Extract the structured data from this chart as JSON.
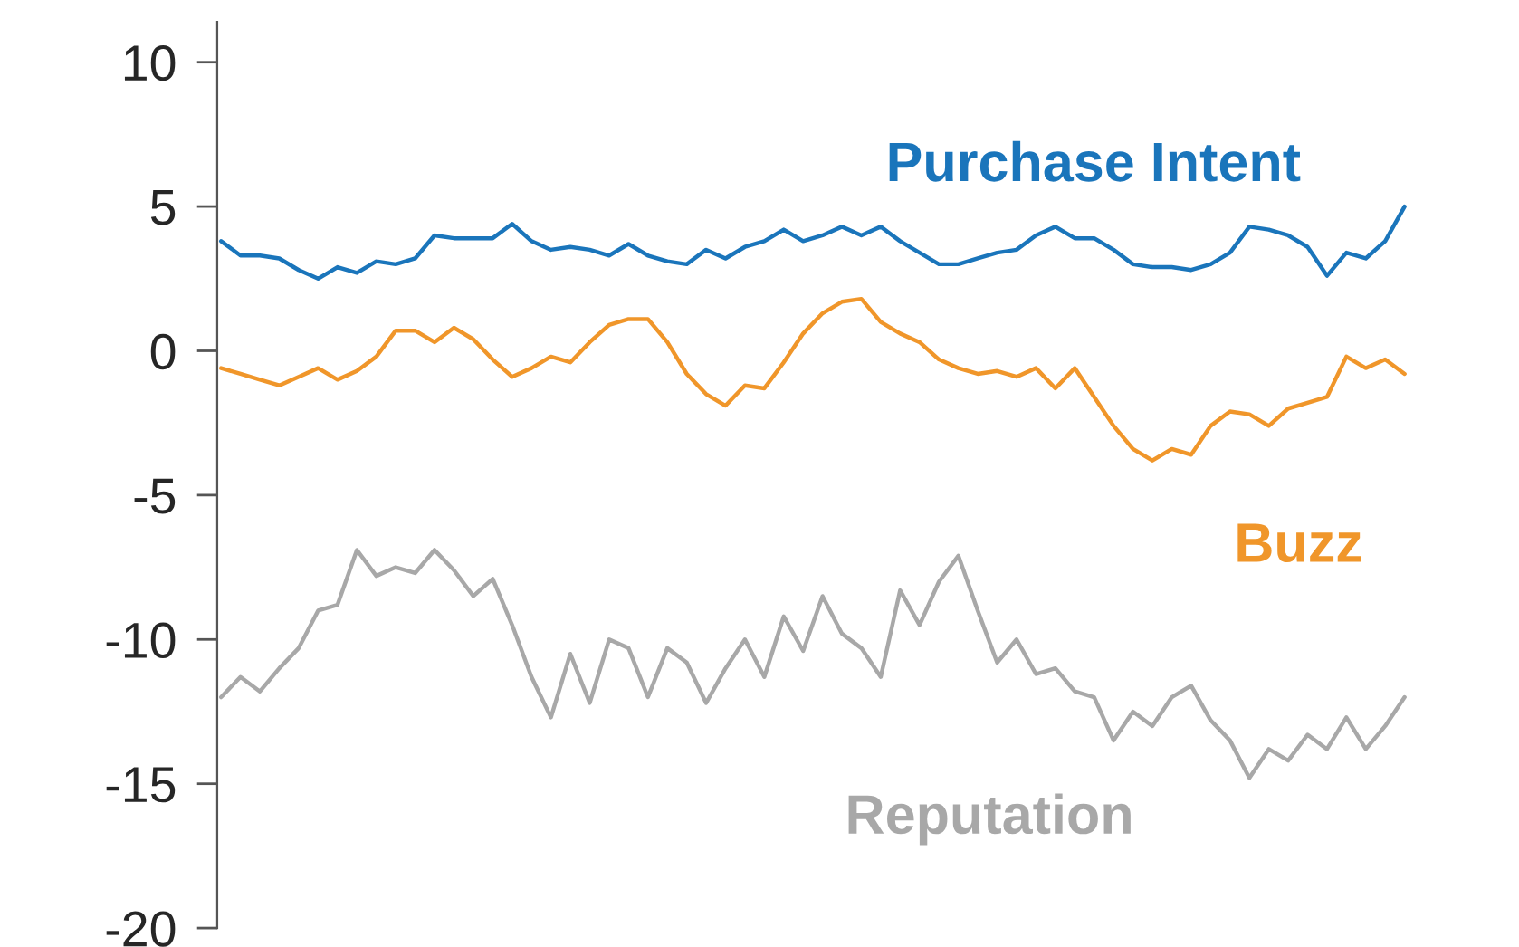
{
  "chart_data": {
    "type": "line",
    "categories": [
      null,
      null,
      null,
      null,
      null,
      null,
      null,
      null,
      null,
      null,
      null,
      null,
      null,
      null,
      null,
      null,
      null,
      null,
      null,
      null,
      null,
      null,
      null,
      null,
      null,
      null,
      null,
      null,
      null,
      null,
      null,
      null,
      null,
      null,
      null,
      null,
      null,
      null,
      null,
      null,
      null,
      null,
      null,
      null,
      null,
      null,
      null,
      null,
      null,
      null,
      null,
      null,
      null,
      null,
      null,
      null,
      null,
      null,
      null,
      null,
      null,
      null
    ],
    "series": [
      {
        "name": "Purchase Intent",
        "color": "#1a75bb",
        "values": [
          3.8,
          3.3,
          3.3,
          3.2,
          2.8,
          2.5,
          2.9,
          2.7,
          3.1,
          3.0,
          3.2,
          4.0,
          3.9,
          3.9,
          3.9,
          4.4,
          3.8,
          3.5,
          3.6,
          3.5,
          3.3,
          3.7,
          3.3,
          3.1,
          3.0,
          3.5,
          3.2,
          3.6,
          3.8,
          4.2,
          3.8,
          4.0,
          4.3,
          4.0,
          4.3,
          3.8,
          3.4,
          3.0,
          3.0,
          3.2,
          3.4,
          3.5,
          4.0,
          4.3,
          3.9,
          3.9,
          3.5,
          3.0,
          2.9,
          2.9,
          2.8,
          3.0,
          3.4,
          4.3,
          4.2,
          4.0,
          3.6,
          2.6,
          3.4,
          3.2,
          3.8,
          5.0
        ]
      },
      {
        "name": "Buzz",
        "color": "#f0962a",
        "values": [
          -0.6,
          -0.8,
          -1.0,
          -1.2,
          -0.9,
          -0.6,
          -1.0,
          -0.7,
          -0.2,
          0.7,
          0.7,
          0.3,
          0.8,
          0.4,
          -0.3,
          -0.9,
          -0.6,
          -0.2,
          -0.4,
          0.3,
          0.9,
          1.1,
          1.1,
          0.3,
          -0.8,
          -1.5,
          -1.9,
          -1.2,
          -1.3,
          -0.4,
          0.6,
          1.3,
          1.7,
          1.8,
          1.0,
          0.6,
          0.3,
          -0.3,
          -0.6,
          -0.8,
          -0.7,
          -0.9,
          -0.6,
          -1.3,
          -0.6,
          -1.6,
          -2.6,
          -3.4,
          -3.8,
          -3.4,
          -3.6,
          -2.6,
          -2.1,
          -2.2,
          -2.6,
          -2.0,
          -1.8,
          -1.6,
          -0.2,
          -0.6,
          -0.3,
          -0.8
        ]
      },
      {
        "name": "Reputation",
        "color": "#a8a8a8",
        "values": [
          -12,
          -11.3,
          -11.8,
          -11.0,
          -10.3,
          -9.0,
          -8.8,
          -6.9,
          -7.8,
          -7.5,
          -7.7,
          -6.9,
          -7.6,
          -8.5,
          -7.9,
          -9.5,
          -11.3,
          -12.7,
          -10.5,
          -12.2,
          -10.0,
          -10.3,
          -12.0,
          -10.3,
          -10.8,
          -12.2,
          -11.0,
          -10.0,
          -11.3,
          -9.2,
          -10.4,
          -8.5,
          -9.8,
          -10.3,
          -11.3,
          -8.3,
          -9.5,
          -8.0,
          -7.1,
          -9.0,
          -10.8,
          -10.0,
          -11.2,
          -11.0,
          -11.8,
          -12.0,
          -13.5,
          -12.5,
          -13.0,
          -12.0,
          -11.6,
          -12.8,
          -13.5,
          -14.8,
          -13.8,
          -14.2,
          -13.3,
          -13.8,
          -12.7,
          -13.8,
          -13.0,
          -12.0
        ]
      }
    ],
    "ylim": [
      -20,
      11.4
    ],
    "yticks": [
      -20,
      -15,
      -10,
      -5,
      0,
      5,
      10
    ],
    "tick_labels": "y",
    "grid": false,
    "legend": false
  }
}
